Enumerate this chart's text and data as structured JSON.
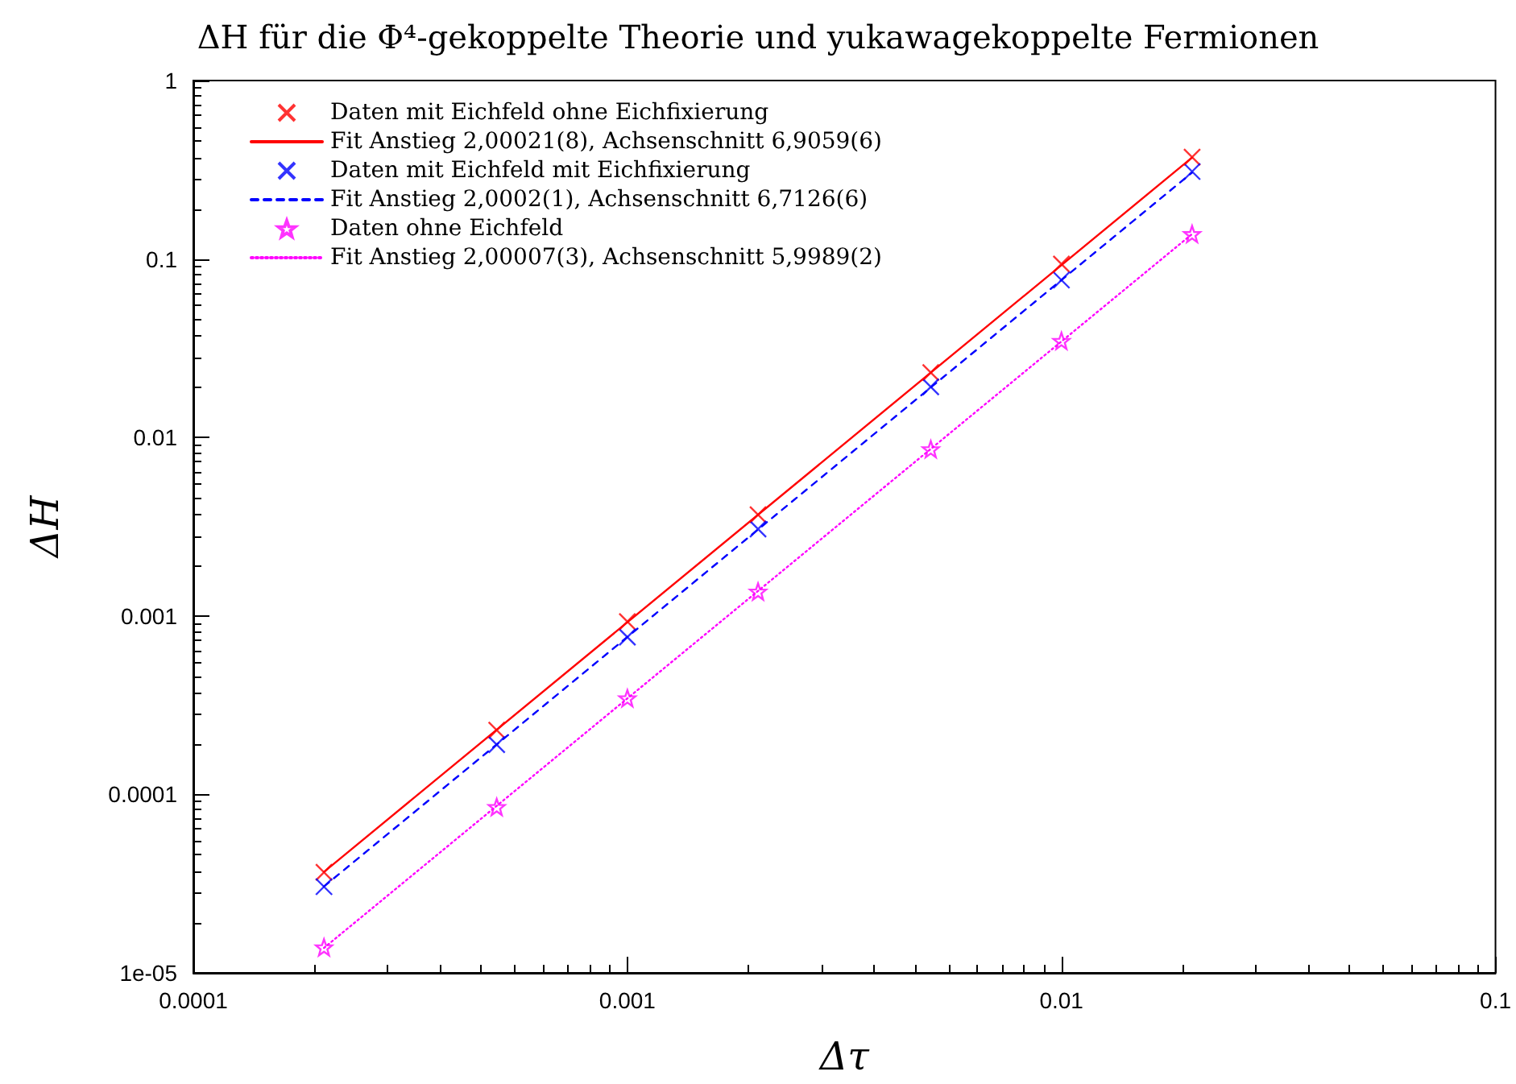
{
  "chart_data": {
    "type": "scatter",
    "title": "ΔH für die Φ⁴-gekoppelte Theorie und yukawagekoppelte Fermionen",
    "xlabel": "Δτ",
    "ylabel": "ΔH",
    "log": "xy",
    "grid": false,
    "legend": "top left",
    "xlim": [
      0.0001,
      0.1
    ],
    "xticks": [
      0.0001,
      0.001,
      0.01,
      0.1
    ],
    "ylim": [
      1e-05,
      1
    ],
    "yticks": [
      {
        "value": 1e-05,
        "label": "1e-05"
      },
      0.0001,
      0.001,
      0.01,
      0.1,
      1
    ],
    "series": [
      {
        "name": "Daten mit Eichfeld ohne Eichfixierung",
        "marker": "cross",
        "color": "#ff0000",
        "x": [
          0.0002,
          0.0005,
          0.001,
          0.002,
          0.005,
          0.01,
          0.02
        ],
        "values": [
          3.66e-05,
          0.000229,
          0.00093,
          0.00369,
          0.0231,
          0.0936,
          0.372
        ]
      },
      {
        "name": "Fit Anstieg 2,00021(8), Achsenschnitt 6,9059(6)",
        "type": "line",
        "marker": "none",
        "line_style": "solid",
        "color": "#ff0000",
        "x": [
          0.0002,
          0.02
        ],
        "values": [
          3.68e-05,
          0.37
        ]
      },
      {
        "name": "Daten mit Eichfeld mit Eichfixierung",
        "marker": "cross",
        "color": "#0000ff",
        "x": [
          0.0002,
          0.0005,
          0.001,
          0.002,
          0.005,
          0.01,
          0.02
        ],
        "values": [
          3.04e-05,
          0.00019,
          0.00076,
          0.00307,
          0.0192,
          0.0762,
          0.309
        ]
      },
      {
        "name": "Fit Anstieg 2,0002(1), Achsenschnitt 6,7126(6)",
        "type": "line",
        "marker": "none",
        "line_style": "dashed",
        "color": "#0000ff",
        "x": [
          0.0002,
          0.02
        ],
        "values": [
          3.05e-05,
          0.305
        ]
      },
      {
        "name": "Daten ohne Eichfeld",
        "marker": "star",
        "color": "#ff00ff",
        "x": [
          0.0002,
          0.0005,
          0.001,
          0.002,
          0.005,
          0.01,
          0.02
        ],
        "values": [
          1.39e-05,
          8.5e-05,
          0.000346,
          0.00137,
          0.0086,
          0.0348,
          0.138
        ]
      },
      {
        "name": "Fit Anstieg 2,00007(3), Achsenschnitt 5,9989(2)",
        "type": "line",
        "marker": "none",
        "line_style": "dotted",
        "color": "#ff00ff",
        "x": [
          0.0002,
          0.02
        ],
        "values": [
          1.38e-05,
          0.138
        ]
      }
    ]
  }
}
